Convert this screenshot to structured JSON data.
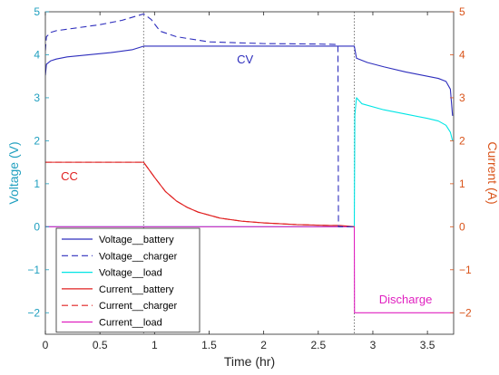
{
  "chart_data": {
    "type": "line",
    "xlabel": "Time (hr)",
    "ylabel_left": "Voltage (V)",
    "ylabel_right": "Current (A)",
    "xlim": [
      0,
      3.74
    ],
    "ylim_left": [
      -2.5,
      5
    ],
    "ylim_right": [
      -2.5,
      5
    ],
    "x_ticks": [
      "0",
      "0.5",
      "1",
      "1.5",
      "2",
      "2.5",
      "3",
      "3.5"
    ],
    "x_tick_values": [
      0,
      0.5,
      1,
      1.5,
      2,
      2.5,
      3,
      3.5
    ],
    "y_ticks_left": [
      "5",
      "4",
      "3",
      "2",
      "1",
      "0",
      "−1",
      "−2"
    ],
    "y_ticks_right": [
      "5",
      "4",
      "3",
      "2",
      "1",
      "0",
      "−1",
      "−2"
    ],
    "y_tick_values": [
      5,
      4,
      3,
      2,
      1,
      0,
      -1,
      -2
    ],
    "vlines": [
      0.9,
      2.83
    ],
    "grid": false,
    "legend_position": "bottom-left",
    "colors": {
      "voltage_axis": "#1f9fbf",
      "current_axis": "#d95319",
      "battery_voltage": "#2e2ebd",
      "charger_voltage": "#2e2ebd",
      "load_voltage": "#00e5e5",
      "battery_current": "#e02020",
      "charger_current": "#e02020",
      "load_current": "#e020c0"
    },
    "annotations": [
      {
        "text": "CV",
        "x": 1.83,
        "y": 3.8,
        "color": "#2e2ebd"
      },
      {
        "text": "CC",
        "x": 0.22,
        "y": 1.08,
        "color": "#e02020"
      },
      {
        "text": "Discharge",
        "x": 3.3,
        "y": -1.78,
        "color": "#e020c0"
      }
    ],
    "series": [
      {
        "name": "Voltage__battery",
        "axis": "left",
        "dash": false,
        "color": "#2e2ebd",
        "x": [
          0,
          0.01,
          0.05,
          0.1,
          0.2,
          0.4,
          0.6,
          0.8,
          0.9,
          1.0,
          1.5,
          2.0,
          2.5,
          2.8,
          2.83,
          2.85,
          2.95,
          3.1,
          3.3,
          3.5,
          3.6,
          3.67,
          3.71,
          3.73
        ],
        "y": [
          3.52,
          3.78,
          3.86,
          3.9,
          3.95,
          4.0,
          4.05,
          4.12,
          4.2,
          4.2,
          4.2,
          4.2,
          4.2,
          4.2,
          4.2,
          3.92,
          3.82,
          3.72,
          3.6,
          3.5,
          3.45,
          3.38,
          3.2,
          2.58
        ]
      },
      {
        "name": "Voltage__charger",
        "axis": "left",
        "dash": true,
        "color": "#2e2ebd",
        "x": [
          0,
          0.01,
          0.05,
          0.1,
          0.3,
          0.5,
          0.7,
          0.9,
          0.97,
          1.05,
          1.2,
          1.5,
          2.0,
          2.5,
          2.68,
          2.685,
          2.83
        ],
        "y": [
          4.1,
          4.42,
          4.52,
          4.56,
          4.63,
          4.7,
          4.8,
          4.95,
          4.82,
          4.55,
          4.42,
          4.3,
          4.26,
          4.25,
          4.24,
          0,
          0
        ]
      },
      {
        "name": "Voltage__load",
        "axis": "left",
        "dash": false,
        "color": "#00e5e5",
        "x": [
          0,
          2.83,
          2.835,
          2.85,
          2.9,
          3.1,
          3.3,
          3.5,
          3.6,
          3.67,
          3.71,
          3.73
        ],
        "y": [
          0,
          0,
          2.6,
          3.0,
          2.86,
          2.72,
          2.62,
          2.52,
          2.46,
          2.36,
          2.2,
          2.0
        ]
      },
      {
        "name": "Current__battery",
        "axis": "right",
        "dash": false,
        "color": "#e02020",
        "x": [
          0,
          0.9,
          1.0,
          1.1,
          1.2,
          1.3,
          1.4,
          1.6,
          1.8,
          2.0,
          2.3,
          2.6,
          2.7,
          2.83
        ],
        "y": [
          1.5,
          1.5,
          1.15,
          0.82,
          0.6,
          0.45,
          0.34,
          0.2,
          0.13,
          0.09,
          0.05,
          0.03,
          0.03,
          0.0
        ]
      },
      {
        "name": "Current__charger",
        "axis": "right",
        "dash": true,
        "color": "#e02020",
        "x": [
          0,
          0.9,
          1.0,
          1.1,
          1.2,
          1.3,
          1.4,
          1.6,
          1.8,
          2.0,
          2.3,
          2.6,
          2.68
        ],
        "y": [
          1.5,
          1.5,
          1.15,
          0.82,
          0.6,
          0.45,
          0.34,
          0.2,
          0.13,
          0.09,
          0.05,
          0.03,
          0.03
        ]
      },
      {
        "name": "Current__load",
        "axis": "right",
        "dash": false,
        "color": "#e020c0",
        "x": [
          0,
          2.83,
          2.832,
          3.74
        ],
        "y": [
          0,
          0,
          -2.0,
          -2.0
        ]
      }
    ]
  }
}
